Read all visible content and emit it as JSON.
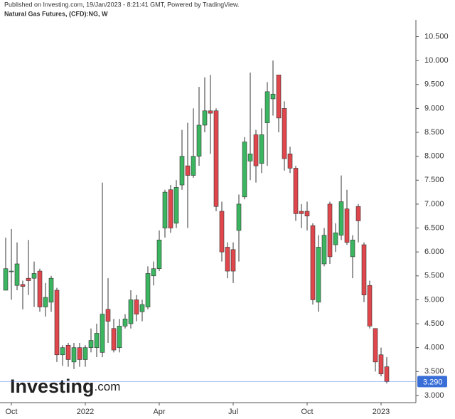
{
  "chart_data": {
    "type": "candlestick",
    "publisher_note": "Published on Investing.com, 19/Jan/2023 - 8:21:41 GMT, Powered by TradingView.",
    "title": "Natural Gas Futures, (CFD):NG, W",
    "logo_name": "Investing",
    "logo_suffix": ".com",
    "categories": [
      null,
      "Oct",
      null,
      null,
      null,
      null,
      null,
      null,
      null,
      null,
      null,
      null,
      null,
      null,
      "2022",
      null,
      null,
      null,
      null,
      null,
      null,
      null,
      null,
      null,
      null,
      null,
      null,
      "Apr",
      null,
      null,
      null,
      null,
      null,
      null,
      null,
      null,
      null,
      null,
      null,
      null,
      "Jul",
      null,
      null,
      null,
      null,
      null,
      null,
      null,
      null,
      null,
      null,
      null,
      null,
      "Oct",
      null,
      null,
      null,
      null,
      null,
      null,
      null,
      null,
      null,
      null,
      null,
      null,
      "2023",
      null
    ],
    "open": [
      5.2,
      5.6,
      5.3,
      5.32,
      5.45,
      5.45,
      5.6,
      4.85,
      4.95,
      5.2,
      3.85,
      4.05,
      3.7,
      4.0,
      3.75,
      4.0,
      4.0,
      3.9,
      4.8,
      4.4,
      4.0,
      4.45,
      4.5,
      5.0,
      4.75,
      4.85,
      5.5,
      5.65,
      6.5,
      7.3,
      6.6,
      7.4,
      7.8,
      7.6,
      8.0,
      8.65,
      8.95,
      8.95,
      6.85,
      6.1,
      6.05,
      6.45,
      7.15,
      7.9,
      8.45,
      7.85,
      8.7,
      9.2,
      9.7,
      9.0,
      8.05,
      7.75,
      6.85,
      6.85,
      6.55,
      4.95,
      5.75,
      7.0,
      6.15,
      6.35,
      6.9,
      5.9,
      6.95,
      6.15,
      5.3,
      4.4,
      3.85,
      3.6
    ],
    "high": [
      6.3,
      6.48,
      6.2,
      5.4,
      6.25,
      5.8,
      5.65,
      5.35,
      5.5,
      5.25,
      4.05,
      4.1,
      4.1,
      4.1,
      4.05,
      4.4,
      4.5,
      7.45,
      5.45,
      4.6,
      4.6,
      4.7,
      5.2,
      5.1,
      5.0,
      5.7,
      5.8,
      6.45,
      7.3,
      7.4,
      7.5,
      8.55,
      8.7,
      9.0,
      9.45,
      9.65,
      9.7,
      9.0,
      7.05,
      6.2,
      6.2,
      7.2,
      8.4,
      9.75,
      8.55,
      9.0,
      9.55,
      10.0,
      9.7,
      9.15,
      8.2,
      7.8,
      7.0,
      7.05,
      6.6,
      6.35,
      6.5,
      7.05,
      6.6,
      7.6,
      7.3,
      6.35,
      7.0,
      6.2,
      5.4,
      4.4,
      4.0,
      3.8
    ],
    "low": [
      5.2,
      5.0,
      5.2,
      4.8,
      5.1,
      4.85,
      4.75,
      4.65,
      4.75,
      3.7,
      3.62,
      3.6,
      3.55,
      3.6,
      3.6,
      3.9,
      3.8,
      3.8,
      4.1,
      3.9,
      3.9,
      4.4,
      4.4,
      4.55,
      4.55,
      4.8,
      5.3,
      5.6,
      6.3,
      6.4,
      6.5,
      7.3,
      6.5,
      7.55,
      7.8,
      8.5,
      8.05,
      6.85,
      5.8,
      5.45,
      5.35,
      5.8,
      7.1,
      7.5,
      7.45,
      7.65,
      7.8,
      8.85,
      8.5,
      7.7,
      7.65,
      6.65,
      6.5,
      6.45,
      4.9,
      4.75,
      5.7,
      5.75,
      6.0,
      6.25,
      6.15,
      5.45,
      6.2,
      4.95,
      4.4,
      3.5,
      3.4,
      3.25
    ],
    "close": [
      5.65,
      5.6,
      5.75,
      5.28,
      5.4,
      5.55,
      4.85,
      5.05,
      5.45,
      3.85,
      4.0,
      3.75,
      4.0,
      3.75,
      4.0,
      4.15,
      4.3,
      4.7,
      4.55,
      3.95,
      4.45,
      4.6,
      5.0,
      4.7,
      4.9,
      5.55,
      5.65,
      6.25,
      7.25,
      6.5,
      7.35,
      8.0,
      7.6,
      8.0,
      8.65,
      8.95,
      8.9,
      6.95,
      6.0,
      5.6,
      5.6,
      7.0,
      8.3,
      8.05,
      7.8,
      8.45,
      9.35,
      9.3,
      8.8,
      7.95,
      7.75,
      6.8,
      6.8,
      6.75,
      5.0,
      6.1,
      6.35,
      5.9,
      6.4,
      7.05,
      6.2,
      6.25,
      6.65,
      5.1,
      4.45,
      3.7,
      3.45,
      3.29
    ],
    "up_color": "#3bb560",
    "down_color": "#e0474c",
    "last_price": {
      "value": 3.29,
      "label": "3.290"
    },
    "last_price_color": "#3a6fd8",
    "ylim": [
      2.85,
      10.85
    ],
    "yticks": [
      {
        "value": 3,
        "label": "3.000"
      },
      {
        "value": 3.5,
        "label": "3.500"
      },
      {
        "value": 4,
        "label": "4.000"
      },
      {
        "value": 4.5,
        "label": "4.500"
      },
      {
        "value": 5,
        "label": "5.000"
      },
      {
        "value": 5.5,
        "label": "5.500"
      },
      {
        "value": 6,
        "label": "6.000"
      },
      {
        "value": 6.5,
        "label": "6.500"
      },
      {
        "value": 7,
        "label": "7.000"
      },
      {
        "value": 7.5,
        "label": "7.500"
      },
      {
        "value": 8,
        "label": "8.000"
      },
      {
        "value": 8.5,
        "label": "8.500"
      },
      {
        "value": 9,
        "label": "9.000"
      },
      {
        "value": 9.5,
        "label": "9.500"
      },
      {
        "value": 10,
        "label": "10.000"
      },
      {
        "value": 10.5,
        "label": "10.500"
      }
    ]
  }
}
